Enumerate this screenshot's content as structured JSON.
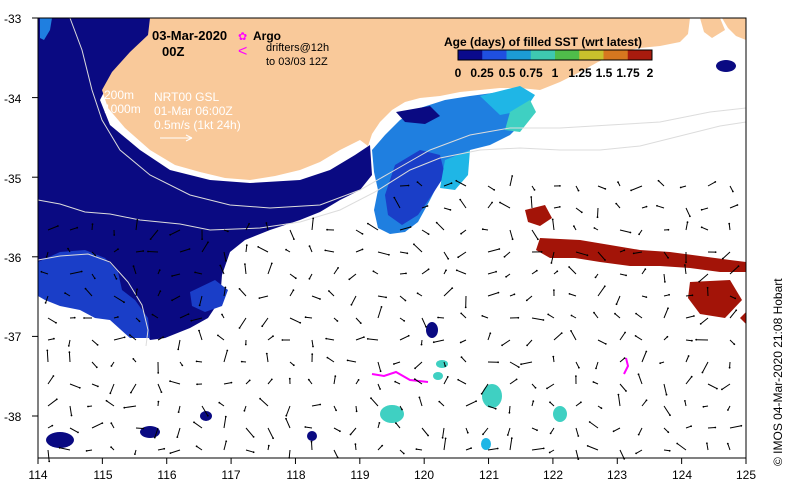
{
  "header": {
    "date": "03-Mar-2020",
    "time": "00Z",
    "argo_label": "Argo",
    "drifters_label": "drifters@12h",
    "drifters_to_label": "to 03/03 12Z"
  },
  "annotations": {
    "iso_200": "200m",
    "iso_1000": "1000m",
    "altimetry_product": "NRT00 GSL",
    "altimetry_date": "01-Mar 06:00Z",
    "vector_scale": "0.5m/s (1kt 24h)"
  },
  "legend": {
    "title": "Age (days) of filled SST (wrt latest)",
    "tick_labels": [
      "0",
      "0.25",
      "0.5",
      "0.75",
      "1",
      "1.25",
      "1.5",
      "1.75",
      "2"
    ],
    "colors": [
      "#0a0a8c",
      "#1f4fe0",
      "#1c9bd4",
      "#3ec9b0",
      "#4fbd4a",
      "#c8c12c",
      "#d6771f",
      "#a81b0e"
    ]
  },
  "axes": {
    "x_ticks": [
      "114",
      "115",
      "116",
      "117",
      "118",
      "119",
      "120",
      "121",
      "122",
      "123",
      "124",
      "125"
    ],
    "y_ticks": [
      "-33",
      "-34",
      "-35",
      "-36",
      "-37",
      "-38"
    ]
  },
  "map": {
    "land_color": "#f9c99a",
    "age_colors": {
      "0": "#0a0a82",
      "0.25": "#1a3ec8",
      "0.5": "#1f7fe0",
      "0.75": "#1fb6e6",
      "1": "#3fd0c2",
      "2": "#a31408"
    }
  },
  "credit": "© IMOS 04-Mar-2020 21:08 Hobart"
}
